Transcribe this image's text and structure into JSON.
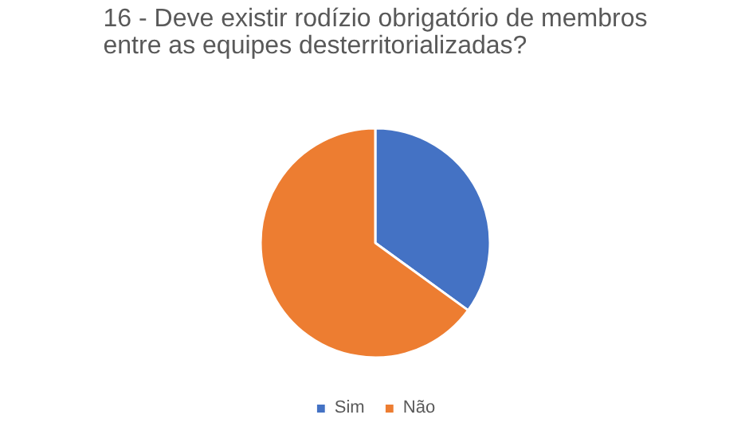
{
  "chart_data": {
    "type": "pie",
    "title": "16 - Deve existir rodízio obrigatório de membros\nentre as equipes desterritorializadas?",
    "categories": [
      "Sim",
      "Não"
    ],
    "values": [
      35,
      65
    ],
    "colors": [
      "#4472c4",
      "#ed7d31"
    ],
    "legend": "bottom"
  }
}
